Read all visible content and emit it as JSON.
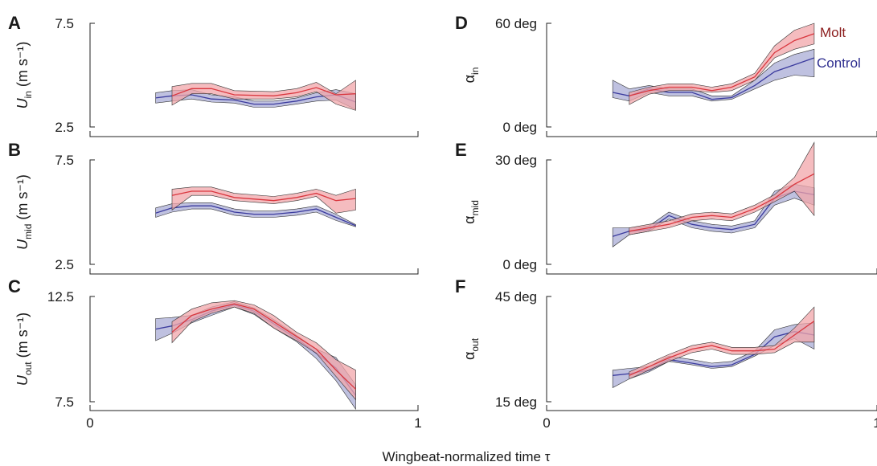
{
  "x_axis": {
    "label": "Wingbeat-normalized time τ",
    "tick_labels": [
      "0",
      "1",
      "1"
    ]
  },
  "legend": {
    "molt": "Molt",
    "control": "Control"
  },
  "colors": {
    "molt_line": "#d9363e",
    "molt_band": "#f2a6aa",
    "control_line": "#3b3b9e",
    "control_band": "#a9acd6"
  },
  "chart_data": [
    {
      "type": "line",
      "panel": "A",
      "ylabel": {
        "main": "U",
        "sub": "in",
        "units": " (m s⁻¹)"
      },
      "ytick_labels": [
        "7.5",
        "2.5"
      ],
      "ylim": [
        2.5,
        7.5
      ],
      "xlim": [
        0,
        1
      ],
      "series": [
        {
          "name": "Molt",
          "x": [
            0.25,
            0.31,
            0.37,
            0.44,
            0.56,
            0.63,
            0.69,
            0.75,
            0.81
          ],
          "y": [
            4.0,
            4.35,
            4.35,
            4.05,
            4.0,
            4.15,
            4.4,
            4.05,
            4.1
          ],
          "lower": [
            3.55,
            4.1,
            4.1,
            3.85,
            3.85,
            3.95,
            4.2,
            3.6,
            3.3
          ],
          "upper": [
            4.45,
            4.6,
            4.6,
            4.25,
            4.2,
            4.35,
            4.65,
            4.1,
            4.75
          ]
        },
        {
          "name": "Control",
          "x": [
            0.2,
            0.25,
            0.31,
            0.37,
            0.44,
            0.5,
            0.56,
            0.63,
            0.69,
            0.75,
            0.81
          ],
          "y": [
            3.9,
            4.0,
            4.05,
            3.85,
            3.8,
            3.6,
            3.6,
            3.75,
            3.95,
            4.05,
            3.7
          ],
          "lower": [
            3.65,
            3.75,
            3.85,
            3.7,
            3.65,
            3.45,
            3.45,
            3.6,
            3.75,
            3.8,
            3.35
          ],
          "upper": [
            4.15,
            4.25,
            4.3,
            4.05,
            3.95,
            3.75,
            3.75,
            3.9,
            4.15,
            4.3,
            4.1
          ]
        }
      ]
    },
    {
      "type": "line",
      "panel": "B",
      "ylabel": {
        "main": "U",
        "sub": "mid",
        "units": " (m s⁻¹)"
      },
      "ytick_labels": [
        "7.5",
        "2.5"
      ],
      "ylim": [
        2.5,
        7.5
      ],
      "xlim": [
        0,
        1
      ],
      "series": [
        {
          "name": "Molt",
          "x": [
            0.25,
            0.31,
            0.37,
            0.44,
            0.56,
            0.63,
            0.69,
            0.75,
            0.81
          ],
          "y": [
            5.8,
            6.0,
            6.0,
            5.7,
            5.55,
            5.7,
            5.9,
            5.55,
            5.65
          ],
          "lower": [
            5.1,
            5.8,
            5.8,
            5.55,
            5.4,
            5.55,
            5.75,
            4.95,
            5.1
          ],
          "upper": [
            6.1,
            6.2,
            6.2,
            5.9,
            5.75,
            5.9,
            6.1,
            5.8,
            6.1
          ]
        },
        {
          "name": "Control",
          "x": [
            0.2,
            0.25,
            0.31,
            0.37,
            0.44,
            0.5,
            0.56,
            0.63,
            0.69,
            0.75,
            0.81
          ],
          "y": [
            4.95,
            5.2,
            5.3,
            5.3,
            5.0,
            4.9,
            4.9,
            5.0,
            5.15,
            4.75,
            4.35
          ],
          "lower": [
            4.75,
            5.0,
            5.15,
            5.15,
            4.85,
            4.75,
            4.75,
            4.85,
            5.0,
            4.6,
            4.3
          ],
          "upper": [
            5.2,
            5.4,
            5.45,
            5.45,
            5.15,
            5.05,
            5.05,
            5.15,
            5.3,
            4.9,
            4.4
          ]
        }
      ]
    },
    {
      "type": "line",
      "panel": "C",
      "ylabel": {
        "main": "U",
        "sub": "out",
        "units": " (m s⁻¹)"
      },
      "ytick_labels": [
        "12.5",
        "7.5"
      ],
      "ylim": [
        7.5,
        12.5
      ],
      "xlim": [
        0,
        1
      ],
      "series": [
        {
          "name": "Molt",
          "x": [
            0.25,
            0.31,
            0.37,
            0.44,
            0.5,
            0.56,
            0.63,
            0.69,
            0.75,
            0.81
          ],
          "y": [
            10.8,
            11.6,
            11.9,
            12.15,
            11.9,
            11.3,
            10.6,
            10.0,
            9.0,
            8.1
          ],
          "lower": [
            10.3,
            11.3,
            11.7,
            12.0,
            11.7,
            11.0,
            10.4,
            9.8,
            8.7,
            7.6
          ],
          "upper": [
            11.3,
            11.9,
            12.2,
            12.3,
            12.1,
            11.6,
            10.8,
            10.3,
            9.5,
            9.0
          ]
        },
        {
          "name": "Control",
          "x": [
            0.2,
            0.25,
            0.31,
            0.37,
            0.44,
            0.5,
            0.56,
            0.63,
            0.69,
            0.75,
            0.81
          ],
          "y": [
            10.95,
            11.1,
            11.4,
            11.8,
            12.1,
            11.8,
            11.2,
            10.5,
            9.8,
            9.1,
            7.8
          ],
          "lower": [
            10.4,
            10.75,
            11.25,
            11.6,
            12.0,
            11.65,
            11.0,
            10.35,
            9.55,
            8.5,
            7.15
          ],
          "upper": [
            11.45,
            11.5,
            11.6,
            12.0,
            12.25,
            11.95,
            11.4,
            10.65,
            10.0,
            9.6,
            8.3
          ]
        }
      ]
    },
    {
      "type": "line",
      "panel": "D",
      "ylabel": {
        "main": "α",
        "sub": "in",
        "units": ""
      },
      "ytick_labels": [
        "60 deg",
        "0 deg"
      ],
      "ylim": [
        0,
        60
      ],
      "xlim": [
        0,
        1
      ],
      "series": [
        {
          "name": "Molt",
          "x": [
            0.25,
            0.31,
            0.37,
            0.44,
            0.5,
            0.56,
            0.63,
            0.69,
            0.75,
            0.81
          ],
          "y": [
            18,
            21,
            23,
            23,
            21,
            23,
            29,
            43,
            50,
            54
          ],
          "lower": [
            13,
            19,
            21,
            21,
            20,
            21,
            27,
            40,
            45,
            48
          ],
          "upper": [
            20,
            23,
            25,
            25,
            23,
            25,
            31,
            47,
            56,
            60
          ]
        },
        {
          "name": "Control",
          "x": [
            0.2,
            0.25,
            0.31,
            0.37,
            0.44,
            0.5,
            0.56,
            0.63,
            0.69,
            0.75,
            0.81
          ],
          "y": [
            20,
            18,
            22,
            20,
            20,
            16,
            17,
            24,
            32,
            36,
            40
          ],
          "lower": [
            17,
            15,
            20,
            18,
            18,
            15,
            16,
            22,
            27,
            30,
            29
          ],
          "upper": [
            27,
            22,
            24,
            22,
            22,
            18,
            18,
            27,
            37,
            42,
            45
          ]
        }
      ]
    },
    {
      "type": "line",
      "panel": "E",
      "ylabel": {
        "main": "α",
        "sub": "mid",
        "units": ""
      },
      "ytick_labels": [
        "30 deg",
        "0 deg"
      ],
      "ylim": [
        0,
        30
      ],
      "xlim": [
        0,
        1
      ],
      "series": [
        {
          "name": "Molt",
          "x": [
            0.25,
            0.31,
            0.37,
            0.44,
            0.5,
            0.56,
            0.63,
            0.69,
            0.75,
            0.81
          ],
          "y": [
            9.5,
            10.5,
            11.5,
            13.5,
            14.0,
            13.5,
            16,
            19,
            23,
            26
          ],
          "lower": [
            8.5,
            9.5,
            10.5,
            12.5,
            13.0,
            12.5,
            15,
            18,
            21,
            14
          ],
          "upper": [
            10.5,
            11.5,
            12.5,
            14.5,
            15.0,
            14.5,
            17,
            20,
            25,
            35
          ]
        },
        {
          "name": "Control",
          "x": [
            0.2,
            0.25,
            0.31,
            0.37,
            0.44,
            0.5,
            0.56,
            0.63,
            0.69,
            0.75,
            0.81
          ],
          "y": [
            8,
            9.5,
            10,
            14,
            11.5,
            10.5,
            10,
            11.5,
            19,
            21,
            20
          ],
          "lower": [
            5,
            8.5,
            9.5,
            13,
            10.5,
            9.5,
            9,
            10.5,
            17,
            19,
            17
          ],
          "upper": [
            10.5,
            10.5,
            11,
            15,
            12.5,
            11.5,
            11,
            12.5,
            21,
            23,
            22
          ]
        }
      ]
    },
    {
      "type": "line",
      "panel": "F",
      "ylabel": {
        "main": "α",
        "sub": "out",
        "units": ""
      },
      "ytick_labels": [
        "45 deg",
        "15 deg"
      ],
      "ylim": [
        15,
        45
      ],
      "xlim": [
        0,
        1
      ],
      "series": [
        {
          "name": "Molt",
          "x": [
            0.25,
            0.31,
            0.37,
            0.44,
            0.5,
            0.56,
            0.63,
            0.69,
            0.75,
            0.81
          ],
          "y": [
            22.5,
            25.0,
            27.5,
            30.0,
            31.0,
            29.5,
            29.5,
            30.0,
            34.0,
            38.0
          ],
          "lower": [
            21.5,
            24.0,
            26.5,
            29.0,
            30.0,
            28.5,
            28.5,
            29.0,
            32.0,
            32.0
          ],
          "upper": [
            23.5,
            26.0,
            28.5,
            31.0,
            32.0,
            30.5,
            30.5,
            31.0,
            36.0,
            42.0
          ]
        },
        {
          "name": "Control",
          "x": [
            0.2,
            0.25,
            0.31,
            0.37,
            0.44,
            0.5,
            0.56,
            0.63,
            0.69,
            0.75,
            0.81
          ],
          "y": [
            22.5,
            23.0,
            24.0,
            27.0,
            26.0,
            25.0,
            25.5,
            28.5,
            33.5,
            35.0,
            34.0
          ],
          "lower": [
            19.0,
            21.5,
            23.5,
            26.5,
            25.5,
            24.5,
            25.0,
            28.0,
            31.0,
            33.0,
            30.0
          ],
          "upper": [
            24.0,
            24.5,
            25.0,
            28.0,
            27.0,
            26.0,
            26.5,
            29.5,
            35.5,
            37.0,
            37.5
          ]
        }
      ]
    }
  ]
}
